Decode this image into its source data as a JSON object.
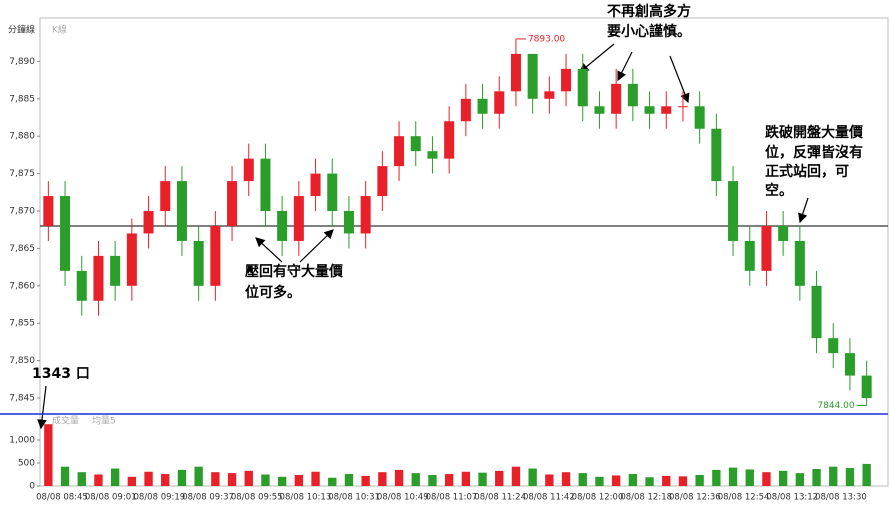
{
  "header": {
    "title": "分鐘線",
    "tab": "K線"
  },
  "chart_data": {
    "type": "candlestick",
    "open": [
      7868,
      7872,
      7862,
      7858,
      7864,
      7860,
      7867,
      7870,
      7874,
      7866,
      7860,
      7868,
      7874,
      7877,
      7870,
      7866,
      7872,
      7875,
      7870,
      7867,
      7872,
      7876,
      7880,
      7878,
      7877,
      7882,
      7885,
      7883,
      7886,
      7891,
      7885,
      7886,
      7889,
      7884,
      7883,
      7887,
      7884,
      7883,
      7884,
      7884,
      7881,
      7874,
      7866,
      7862,
      7868,
      7866,
      7860,
      7853,
      7851,
      7848
    ],
    "high": [
      7874,
      7874,
      7864,
      7866,
      7866,
      7869,
      7872,
      7876,
      7876,
      7868,
      7870,
      7876,
      7879,
      7879,
      7872,
      7874,
      7877,
      7877,
      7872,
      7874,
      7878,
      7882,
      7882,
      7880,
      7884,
      7887,
      7887,
      7888,
      7893,
      7891,
      7888,
      7891,
      7891,
      7886,
      7889,
      7889,
      7886,
      7886,
      7886,
      7886,
      7883,
      7876,
      7868,
      7870,
      7870,
      7868,
      7862,
      7855,
      7853,
      7850
    ],
    "low": [
      7866,
      7860,
      7856,
      7856,
      7858,
      7858,
      7865,
      7868,
      7864,
      7858,
      7858,
      7866,
      7872,
      7868,
      7864,
      7864,
      7870,
      7868,
      7865,
      7865,
      7870,
      7874,
      7876,
      7875,
      7875,
      7880,
      7881,
      7881,
      7884,
      7883,
      7883,
      7884,
      7882,
      7881,
      7881,
      7882,
      7881,
      7881,
      7882,
      7879,
      7872,
      7864,
      7860,
      7860,
      7864,
      7858,
      7851,
      7849,
      7846,
      7844
    ],
    "close": [
      7872,
      7862,
      7858,
      7864,
      7860,
      7867,
      7870,
      7874,
      7866,
      7860,
      7868,
      7874,
      7877,
      7870,
      7866,
      7872,
      7875,
      7870,
      7867,
      7872,
      7876,
      7880,
      7878,
      7877,
      7882,
      7885,
      7883,
      7886,
      7891,
      7885,
      7886,
      7889,
      7884,
      7883,
      7887,
      7884,
      7883,
      7884,
      7884,
      7881,
      7874,
      7866,
      7862,
      7868,
      7866,
      7860,
      7853,
      7851,
      7848,
      7845
    ],
    "volume": [
      1343,
      420,
      300,
      250,
      380,
      200,
      310,
      260,
      350,
      420,
      300,
      280,
      330,
      250,
      200,
      240,
      310,
      180,
      260,
      220,
      300,
      350,
      280,
      240,
      260,
      310,
      290,
      330,
      420,
      380,
      250,
      300,
      280,
      200,
      230,
      260,
      190,
      220,
      210,
      240,
      350,
      400,
      360,
      300,
      330,
      280,
      370,
      420,
      390,
      480
    ],
    "up_color": "#e8202a",
    "down_color": "#2a9d2a",
    "ylim": [
      7843.4,
      7895.8
    ],
    "yticks": [
      {
        "value": 7845,
        "label": "7,845"
      },
      {
        "value": 7850,
        "label": "7,850"
      },
      {
        "value": 7855,
        "label": "7,855"
      },
      {
        "value": 7860,
        "label": "7,860"
      },
      {
        "value": 7865,
        "label": "7,865"
      },
      {
        "value": 7870,
        "label": "7,870"
      },
      {
        "value": 7875,
        "label": "7,875"
      },
      {
        "value": 7880,
        "label": "7,880"
      },
      {
        "value": 7885,
        "label": "7,885"
      },
      {
        "value": 7890,
        "label": "7,890"
      }
    ],
    "reference_line": 7868,
    "high_label": {
      "value": 7893,
      "label": "7893.00"
    },
    "low_label": {
      "value": 7844,
      "label": "7844.00"
    },
    "volume_ylim": [
      0,
      1400
    ],
    "volume_yticks": [
      0,
      500,
      {
        "value": 1000,
        "label": "1,000"
      }
    ],
    "volume_legend": [
      "成交量",
      "均量5"
    ],
    "x_labels": [
      "08/08 08:45",
      "08/08 09:01",
      "08/08 09:19",
      "08/08 09:37",
      "08/08 09:55",
      "08/08 10:13",
      "08/08 10:31",
      "08/08 10:49",
      "08/08 11:07",
      "08/08 11:24",
      "08/08 11:42",
      "08/08 12:00",
      "08/08 12:18",
      "08/08 12:36",
      "08/08 12:54",
      "08/08 13:12",
      "08/08 13:30"
    ]
  },
  "annotations": [
    {
      "lines": [
        "壓回有守大量價",
        "位可多。"
      ]
    },
    {
      "lines": [
        "不再創高多方",
        "要小心謹慎。"
      ]
    },
    {
      "lines": [
        "跌破開盤大量價",
        "位，反彈皆沒有",
        "正式站回，可",
        "空。"
      ]
    },
    {
      "lines": [
        "1343 口"
      ]
    }
  ]
}
